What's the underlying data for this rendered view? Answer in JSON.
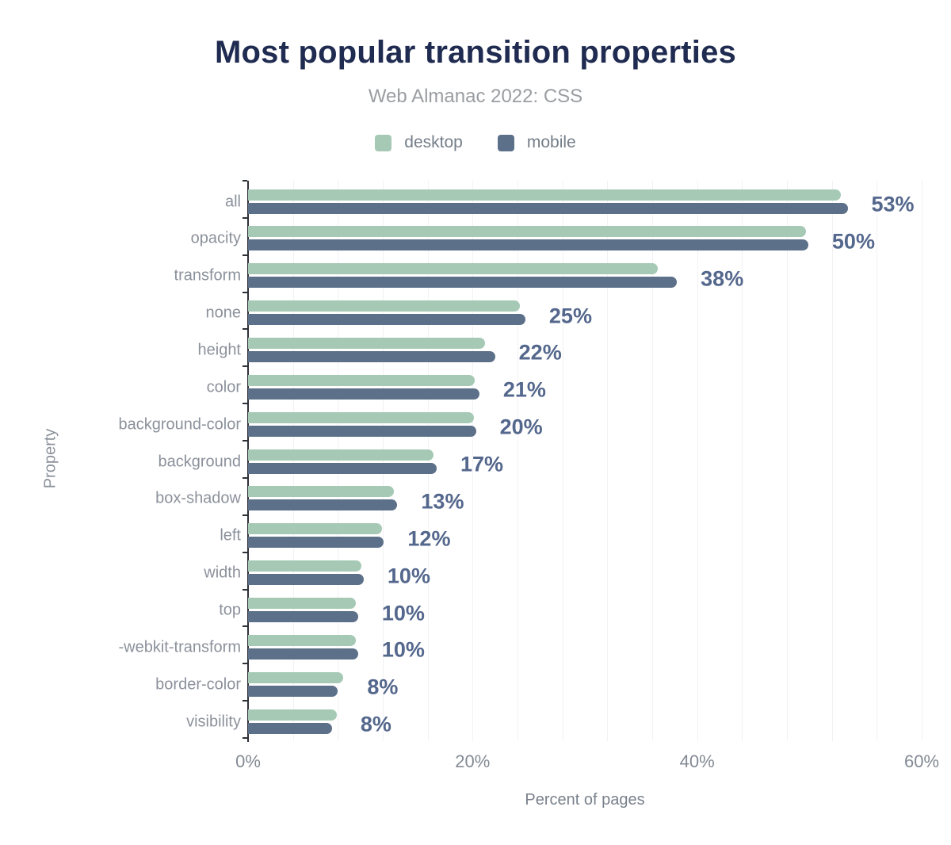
{
  "header": {
    "title": "Most popular transition properties",
    "subtitle": "Web Almanac 2022: CSS"
  },
  "legend": [
    {
      "label": "desktop",
      "color": "#a6c9b6"
    },
    {
      "label": "mobile",
      "color": "#5d7089"
    }
  ],
  "colors": {
    "title": "#1f2b50",
    "subtitle": "#9a9da1",
    "desktop_bar": "#a6c9b6",
    "mobile_bar": "#5d7089",
    "value_label": "#54678c",
    "category_label": "#8b919b",
    "tick_label": "#838a94",
    "gridline": "#f2f2f6",
    "axis_line": "#2e3138"
  },
  "chart_data": {
    "type": "bar",
    "orientation": "horizontal",
    "title": "Most popular transition properties",
    "subtitle": "Web Almanac 2022: CSS",
    "xlabel": "Percent of pages",
    "ylabel": "Property",
    "xlim": [
      0,
      60
    ],
    "x_ticks": [
      {
        "value": 0,
        "label": "0%"
      },
      {
        "value": 20,
        "label": "20%"
      },
      {
        "value": 40,
        "label": "40%"
      },
      {
        "value": 60,
        "label": "60%"
      }
    ],
    "minor_grid_step_pct": 4,
    "grid": true,
    "legend_position": "top",
    "categories": [
      "all",
      "opacity",
      "transform",
      "none",
      "height",
      "color",
      "background-color",
      "background",
      "box-shadow",
      "left",
      "width",
      "top",
      "-webkit-transform",
      "border-color",
      "visibility"
    ],
    "series": [
      {
        "name": "desktop",
        "values": [
          52.8,
          49.7,
          36.5,
          24.2,
          21.1,
          20.2,
          20.1,
          16.5,
          13.0,
          11.9,
          10.1,
          9.6,
          9.6,
          8.5,
          7.9
        ]
      },
      {
        "name": "mobile",
        "values": [
          53.4,
          49.9,
          38.2,
          24.7,
          22.0,
          20.6,
          20.3,
          16.8,
          13.3,
          12.1,
          10.3,
          9.8,
          9.8,
          8.0,
          7.5
        ]
      }
    ],
    "bar_labels": [
      "53%",
      "50%",
      "38%",
      "25%",
      "22%",
      "21%",
      "20%",
      "17%",
      "13%",
      "12%",
      "10%",
      "10%",
      "10%",
      "8%",
      "8%"
    ]
  }
}
